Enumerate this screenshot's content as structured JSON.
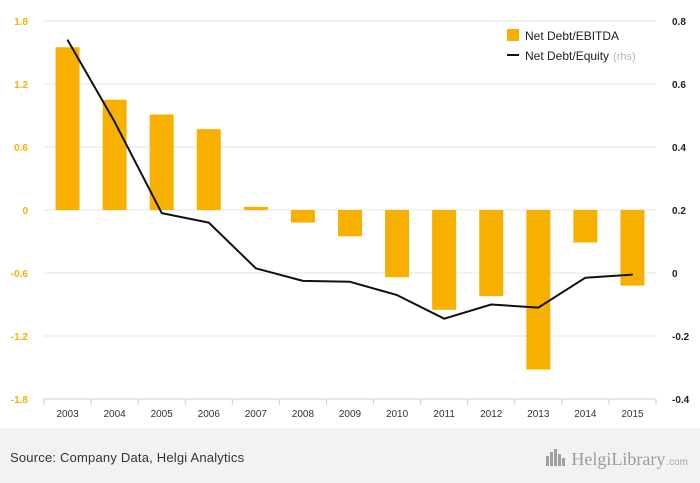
{
  "chart_data": {
    "type": "bar+line",
    "categories": [
      "2003",
      "2004",
      "2005",
      "2006",
      "2007",
      "2008",
      "2009",
      "2010",
      "2011",
      "2012",
      "2013",
      "2014",
      "2015"
    ],
    "series": [
      {
        "name": "Net Debt/EBITDA",
        "type": "bar",
        "axis": "left",
        "color": "#F8B000",
        "values": [
          1.55,
          1.05,
          0.91,
          0.77,
          0.03,
          -0.12,
          -0.25,
          -0.64,
          -0.95,
          -0.82,
          -1.52,
          -0.31,
          -0.72
        ]
      },
      {
        "name": "Net Debt/Equity",
        "name_suffix": "(rhs)",
        "type": "line",
        "axis": "right",
        "color": "#111111",
        "values": [
          0.74,
          0.48,
          0.19,
          0.16,
          0.015,
          -0.025,
          -0.028,
          -0.07,
          -0.145,
          -0.1,
          -0.11,
          -0.015,
          -0.005
        ]
      }
    ],
    "y_left": {
      "range": [
        -1.8,
        1.8
      ],
      "ticks": [
        "1.8",
        "1.2",
        "0.6",
        "0",
        "-0.6",
        "-1.2",
        "-1.8"
      ],
      "tick_values": [
        1.8,
        1.2,
        0.6,
        0,
        -0.6,
        -1.2,
        -1.8
      ],
      "tick_color": "#F8B000"
    },
    "y_right": {
      "range": [
        -0.4,
        0.8
      ],
      "ticks": [
        "0.8",
        "0.6",
        "0.4",
        "0.2",
        "0",
        "-0.2",
        "-0.4"
      ],
      "tick_values": [
        0.8,
        0.6,
        0.4,
        0.2,
        0,
        -0.2,
        -0.4
      ],
      "tick_color": "#222222"
    },
    "grid": true,
    "legend_position": "top-right"
  },
  "footer": {
    "source": "Source: Company Data, Helgi Analytics",
    "logo_text": "HelgiLibrary",
    "logo_tld": ".com",
    "logo_icon": "city-skyline-icon"
  }
}
